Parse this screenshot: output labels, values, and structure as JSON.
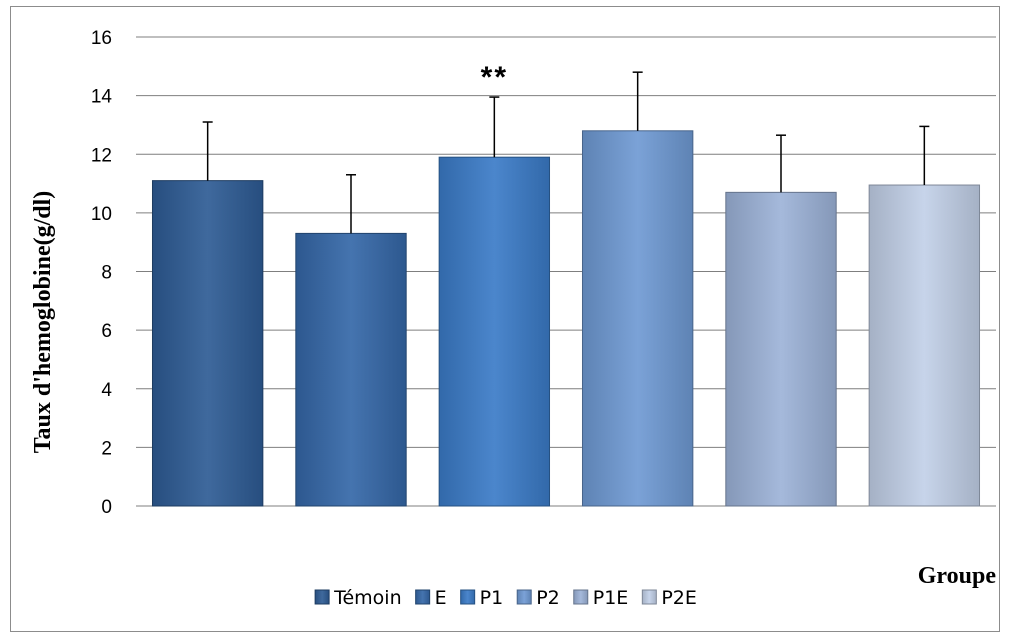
{
  "chart_data": {
    "type": "bar",
    "categories": [
      "Témoin",
      "E",
      "P1",
      "P2",
      "P1E",
      "P2E"
    ],
    "values": [
      11.1,
      9.3,
      11.9,
      12.8,
      10.7,
      10.95
    ],
    "error_upper": [
      13.1,
      11.3,
      13.95,
      14.8,
      12.65,
      12.95
    ],
    "annotations": [
      {
        "category": "P1",
        "text": "**"
      }
    ],
    "xlabel": "Groupe",
    "ylabel": "Taux d'hemoglobine(g/dl)",
    "ylim": [
      0,
      16
    ],
    "yticks": [
      0,
      2,
      4,
      6,
      8,
      10,
      12,
      14,
      16
    ],
    "grid": true,
    "legend_position": "bottom",
    "colors": [
      "#2e5c95",
      "#3568a8",
      "#3b7cc8",
      "#6f9ad4",
      "#9db3d8",
      "#c2d0e8"
    ]
  }
}
